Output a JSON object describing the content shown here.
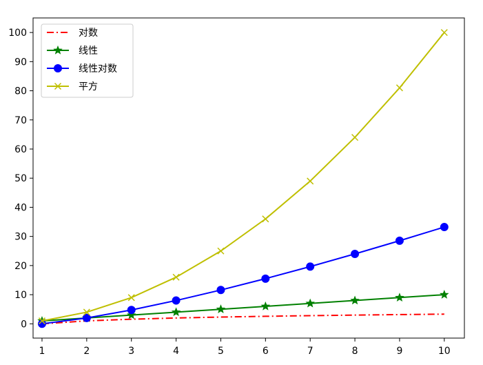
{
  "chart_data": {
    "type": "line",
    "title": "",
    "xlabel": "",
    "ylabel": "",
    "x": [
      1,
      2,
      3,
      4,
      5,
      6,
      7,
      8,
      9,
      10
    ],
    "xlim": [
      0.8,
      10.45
    ],
    "ylim": [
      -4.9,
      105.0
    ],
    "xticks": [
      1,
      2,
      3,
      4,
      5,
      6,
      7,
      8,
      9,
      10
    ],
    "yticks": [
      0,
      10,
      20,
      30,
      40,
      50,
      60,
      70,
      80,
      90,
      100
    ],
    "grid": false,
    "legend_position": "top-left",
    "series": [
      {
        "name": "对数",
        "color": "#ff0000",
        "line_style": "dash-dot",
        "marker": "none",
        "values": [
          0.0,
          1.0,
          1.58,
          2.0,
          2.32,
          2.58,
          2.81,
          3.0,
          3.17,
          3.32
        ]
      },
      {
        "name": "线性",
        "color": "#008000",
        "line_style": "solid",
        "marker": "star",
        "values": [
          1,
          2,
          3,
          4,
          5,
          6,
          7,
          8,
          9,
          10
        ]
      },
      {
        "name": "线性对数",
        "color": "#0000ff",
        "line_style": "solid",
        "marker": "circle",
        "values": [
          0.0,
          2.0,
          4.75,
          8.0,
          11.61,
          15.51,
          19.65,
          24.0,
          28.53,
          33.22
        ]
      },
      {
        "name": "平方",
        "color": "#bfbf00",
        "line_style": "solid",
        "marker": "x",
        "values": [
          1,
          4,
          9,
          16,
          25,
          36,
          49,
          64,
          81,
          100
        ]
      }
    ]
  }
}
